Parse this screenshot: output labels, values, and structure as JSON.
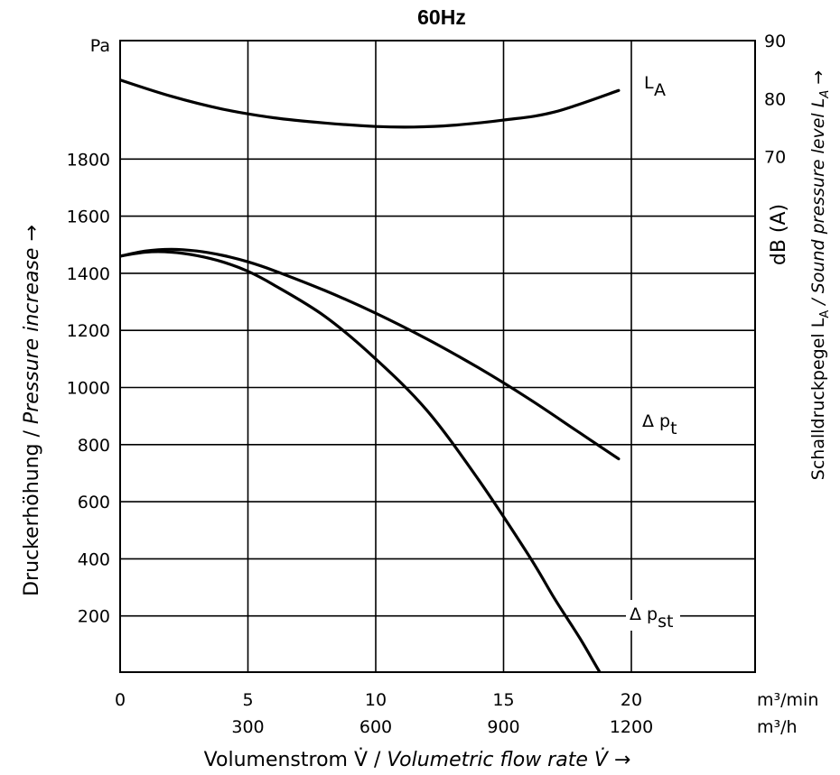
{
  "chart_data": {
    "type": "line",
    "title": "60Hz",
    "x_axis": {
      "label_prefix": "Volumenstrom V̇ / ",
      "label_italic": "Volumetric flow rate V̇ →",
      "range": [
        0,
        20
      ],
      "ticks_min": [
        "0",
        "5",
        "10",
        "15",
        "20"
      ],
      "ticks_h": [
        "300",
        "600",
        "900",
        "1200"
      ],
      "unit_min": "m³/min",
      "unit_h": "m³/h"
    },
    "y_axis": {
      "label_prefix": "Druckerhöhung / ",
      "label_italic": "Pressure increase →",
      "unit": "Pa",
      "range": [
        0,
        2000
      ],
      "ticks": [
        "200",
        "400",
        "600",
        "800",
        "1000",
        "1200",
        "1400",
        "1600",
        "1800"
      ]
    },
    "y2_axis": {
      "label_a": "dB (A)",
      "label_b_prefix": "Schalldruckpegel L",
      "label_b_sub": "A",
      "label_b_italic": " / Sound pressure level L",
      "label_b_italic_sub": "A",
      "label_b_arrow": " →",
      "range": [
        55,
        90
      ],
      "ticks": [
        "90",
        "80",
        "70"
      ]
    },
    "grid": true,
    "series": [
      {
        "name": "LA",
        "label_main": "L",
        "label_sub": "A",
        "axis": "y2",
        "x": [
          0,
          2,
          4,
          6,
          8,
          10,
          11.5,
          13,
          15,
          17,
          19.5
        ],
        "y": [
          83.2,
          80.4,
          78.2,
          76.7,
          75.8,
          75.2,
          75.1,
          75.4,
          76.3,
          77.7,
          81.4
        ]
      },
      {
        "name": "Δpt",
        "label_main": "Δ p",
        "label_sub": "t",
        "axis": "y",
        "x": [
          0,
          1,
          2,
          3,
          4,
          5,
          6,
          8,
          10,
          12,
          14,
          16,
          18,
          19.5
        ],
        "y": [
          1460,
          1478,
          1484,
          1478,
          1463,
          1440,
          1410,
          1340,
          1260,
          1170,
          1070,
          960,
          840,
          750
        ]
      },
      {
        "name": "Δpst",
        "label_main": "Δ p",
        "label_sub": "st",
        "axis": "y",
        "x": [
          0,
          1,
          2,
          3,
          4,
          5,
          6,
          8,
          10,
          12,
          14,
          16,
          17,
          18,
          19,
          19.5
        ],
        "y": [
          1460,
          1474,
          1474,
          1462,
          1440,
          1407,
          1360,
          1250,
          1100,
          920,
          680,
          410,
          260,
          120,
          -30,
          -70
        ]
      }
    ]
  }
}
